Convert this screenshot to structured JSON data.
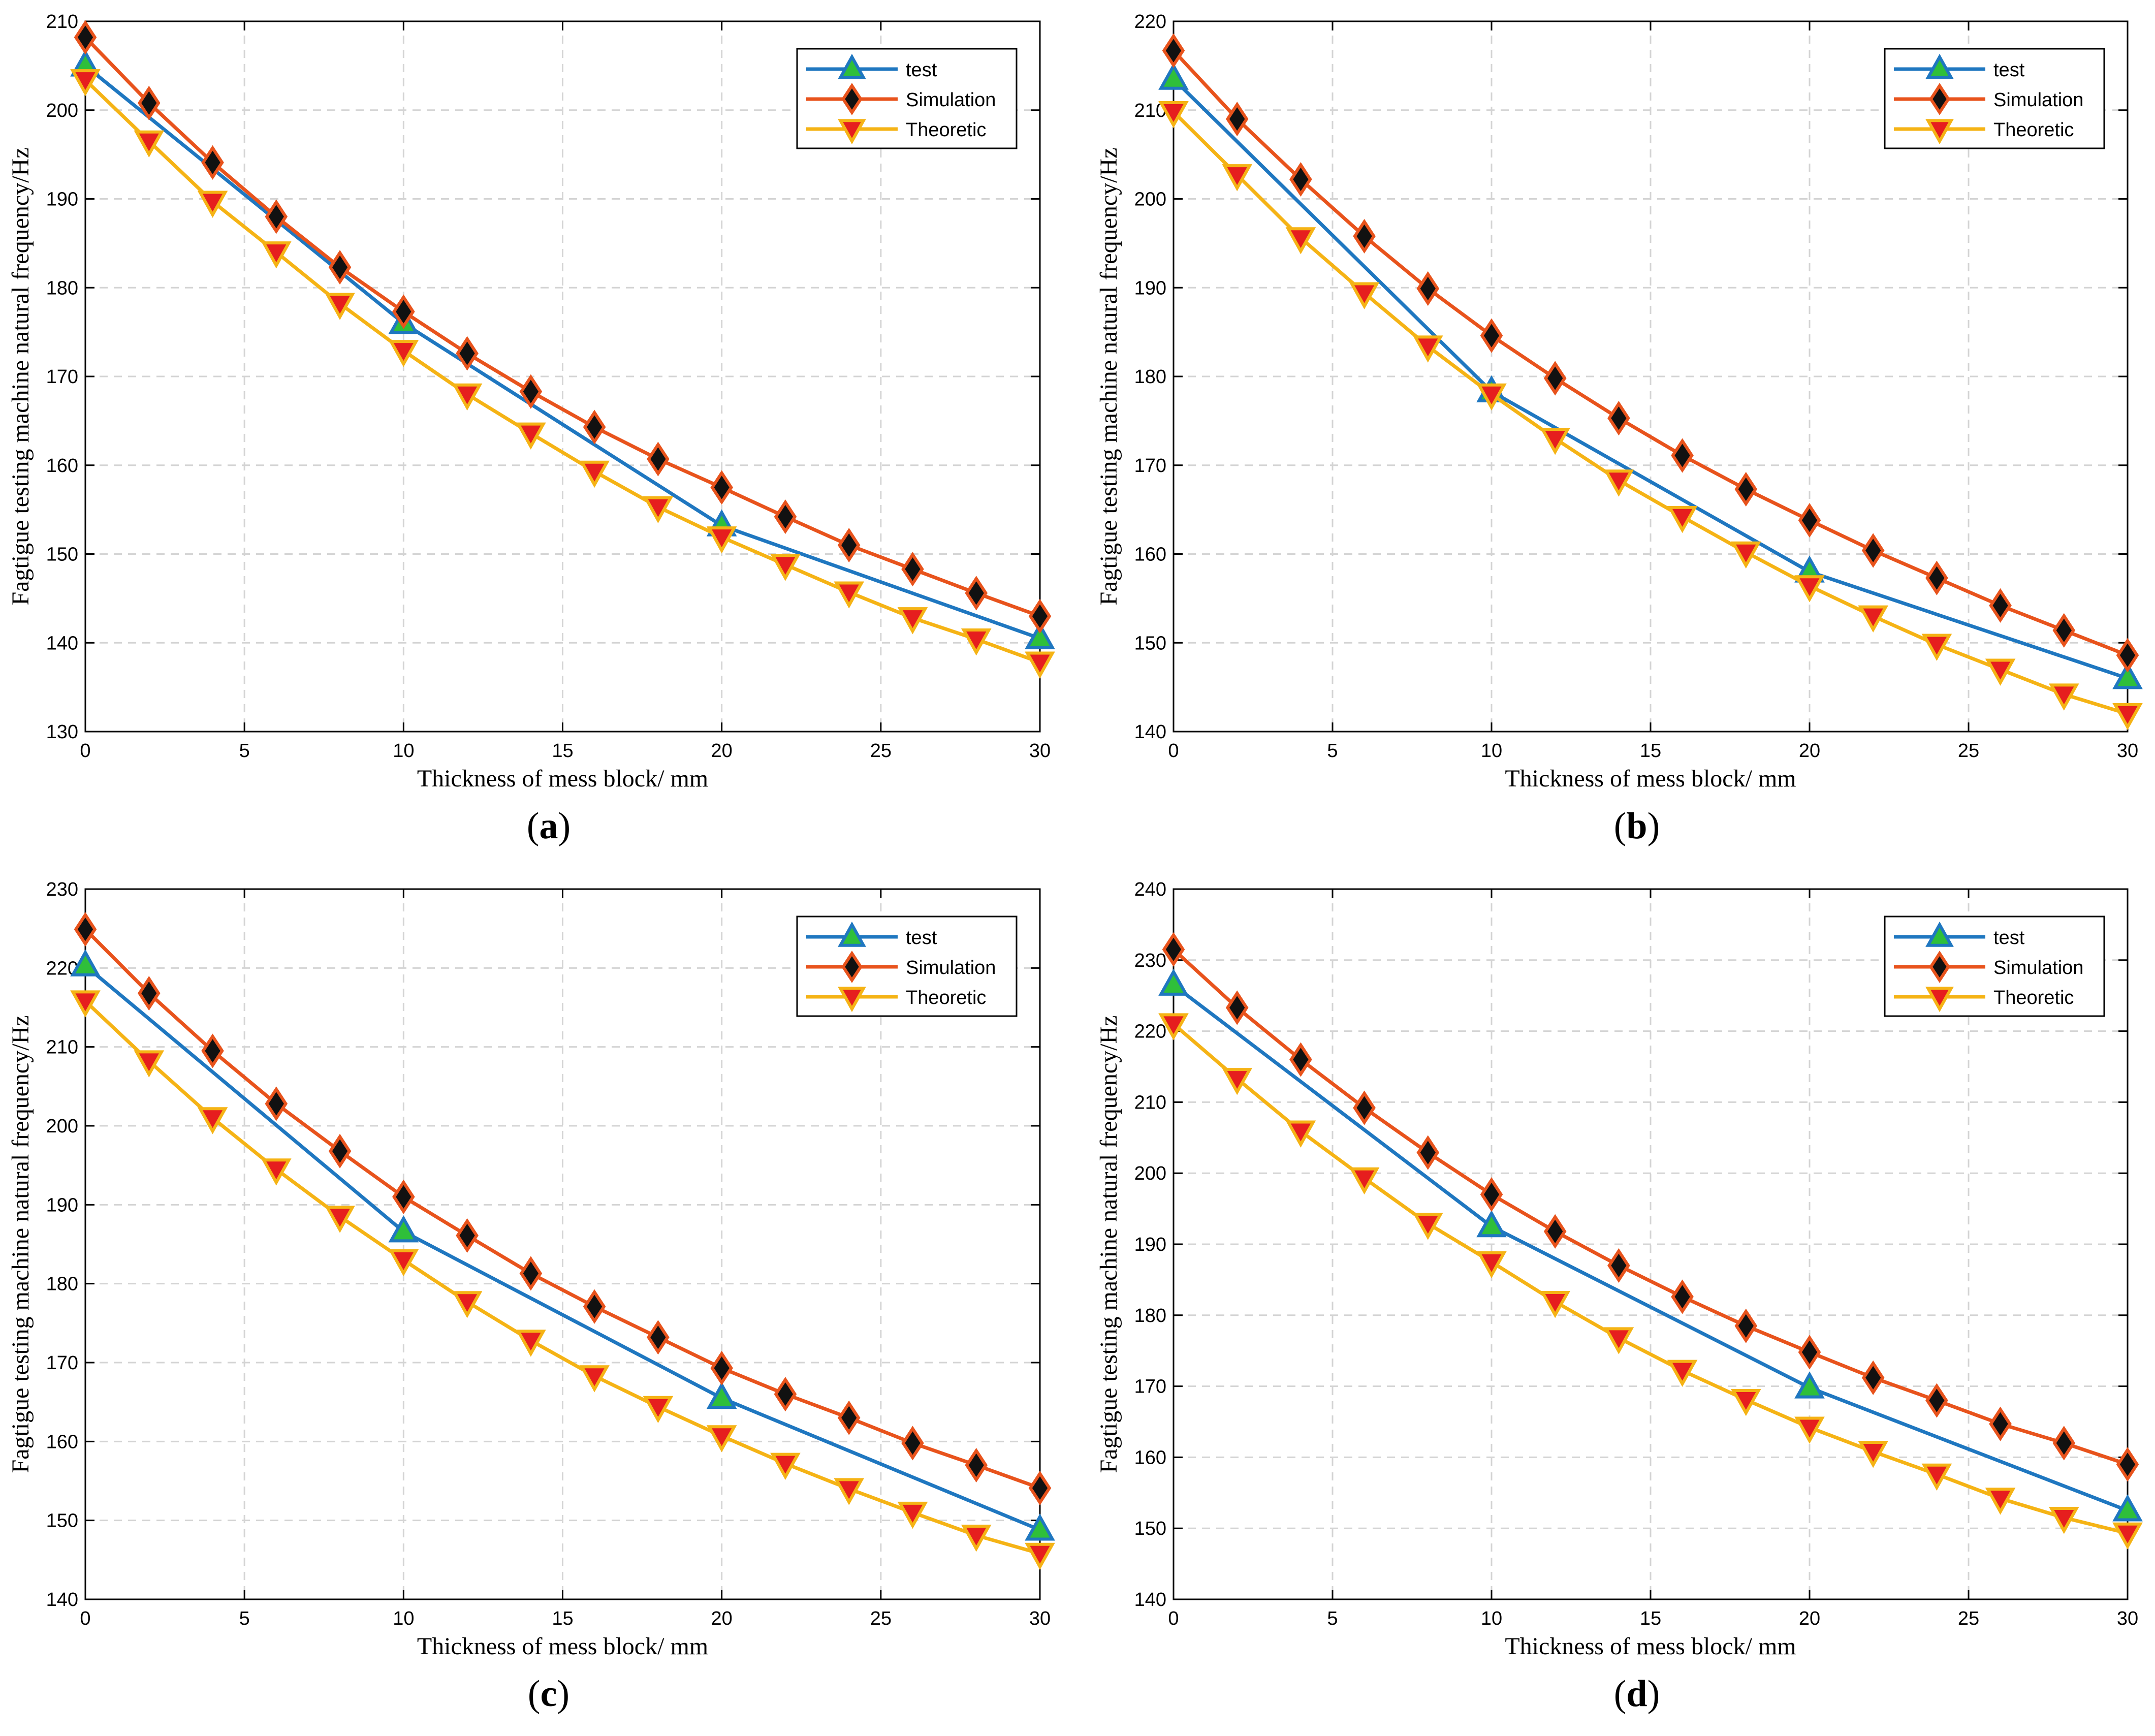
{
  "colors": {
    "test_line": "#1f77c0",
    "test_marker_fill": "#2fbf3a",
    "simulation_line": "#e8531c",
    "simulation_marker_fill": "#111111",
    "theoretic_line": "#f5b315",
    "theoretic_marker_fill": "#e61e1e",
    "grid": "#d4d4d4",
    "axis": "#000000"
  },
  "chart_data": [
    {
      "type": "line",
      "panel_label": "(a)",
      "panel_letter": "a",
      "xlabel": "Thickness of mess block/ mm",
      "ylabel": "Fagtigue testing machine natural frequency/Hz",
      "xlim": [
        0,
        30
      ],
      "ylim": [
        130,
        210
      ],
      "xticks": [
        0,
        5,
        10,
        15,
        20,
        25,
        30
      ],
      "yticks": [
        130,
        140,
        150,
        160,
        170,
        180,
        190,
        200,
        210
      ],
      "grid": true,
      "legend_position": "top-right",
      "series": [
        {
          "name": "test",
          "marker": "triangle-up",
          "x": [
            0,
            10,
            20,
            30
          ],
          "values": [
            205,
            176,
            153.2,
            140.5
          ]
        },
        {
          "name": "Simulation",
          "marker": "diamond",
          "x": [
            0,
            2,
            4,
            6,
            8,
            10,
            12,
            14,
            16,
            18,
            20,
            22,
            24,
            26,
            28,
            30
          ],
          "values": [
            208.2,
            200.8,
            194.1,
            188,
            182.3,
            177.3,
            172.6,
            168.3,
            164.3,
            160.7,
            157.5,
            154.2,
            151,
            148.3,
            145.6,
            143
          ]
        },
        {
          "name": "Theoretic",
          "marker": "triangle-down",
          "x": [
            0,
            2,
            4,
            6,
            8,
            10,
            12,
            14,
            16,
            18,
            20,
            22,
            24,
            26,
            28,
            30
          ],
          "values": [
            203.4,
            196.5,
            189.7,
            184,
            178.2,
            172.9,
            168,
            163.6,
            159.3,
            155.3,
            151.9,
            148.8,
            145.7,
            142.8,
            140.4,
            137.8
          ]
        }
      ]
    },
    {
      "type": "line",
      "panel_label": "(b)",
      "panel_letter": "b",
      "xlabel": "Thickness of mess block/ mm",
      "ylabel": "Fagtigue testing machine natural frequency/Hz",
      "xlim": [
        0,
        30
      ],
      "ylim": [
        140,
        220
      ],
      "xticks": [
        0,
        5,
        10,
        15,
        20,
        25,
        30
      ],
      "yticks": [
        140,
        150,
        160,
        170,
        180,
        190,
        200,
        210,
        220
      ],
      "grid": true,
      "legend_position": "top-right",
      "series": [
        {
          "name": "test",
          "marker": "triangle-up",
          "x": [
            0,
            10,
            20,
            30
          ],
          "values": [
            213.5,
            178.3,
            158,
            146
          ]
        },
        {
          "name": "Simulation",
          "marker": "diamond",
          "x": [
            0,
            2,
            4,
            6,
            8,
            10,
            12,
            14,
            16,
            18,
            20,
            22,
            24,
            26,
            28,
            30
          ],
          "values": [
            216.7,
            209,
            202.2,
            195.8,
            189.9,
            184.6,
            179.8,
            175.3,
            171.1,
            167.3,
            163.8,
            160.4,
            157.3,
            154.2,
            151.4,
            148.6
          ]
        },
        {
          "name": "Theoretic",
          "marker": "triangle-down",
          "x": [
            0,
            2,
            4,
            6,
            8,
            10,
            12,
            14,
            16,
            18,
            20,
            22,
            24,
            26,
            28,
            30
          ],
          "values": [
            209.8,
            202.7,
            195.6,
            189.4,
            183.4,
            178,
            173,
            168.3,
            164.2,
            160.2,
            156.4,
            153,
            149.8,
            147,
            144.2,
            142
          ]
        }
      ]
    },
    {
      "type": "line",
      "panel_label": "(c)",
      "panel_letter": "c",
      "xlabel": "Thickness of mess block/ mm",
      "ylabel": "Fagtigue testing machine natural frequency/Hz",
      "xlim": [
        0,
        30
      ],
      "ylim": [
        140,
        230
      ],
      "xticks": [
        0,
        5,
        10,
        15,
        20,
        25,
        30
      ],
      "yticks": [
        140,
        150,
        160,
        170,
        180,
        190,
        200,
        210,
        220,
        230
      ],
      "grid": true,
      "legend_position": "top-right",
      "series": [
        {
          "name": "test",
          "marker": "triangle-up",
          "x": [
            0,
            10,
            20,
            30
          ],
          "values": [
            220.3,
            186.6,
            165.5,
            148.8
          ]
        },
        {
          "name": "Simulation",
          "marker": "diamond",
          "x": [
            0,
            2,
            4,
            6,
            8,
            10,
            12,
            14,
            16,
            18,
            20,
            22,
            24,
            26,
            28,
            30
          ],
          "values": [
            224.9,
            216.8,
            209.5,
            202.8,
            196.8,
            191,
            186.1,
            181.3,
            177.1,
            173.2,
            169.3,
            166,
            163,
            159.8,
            157,
            154.1
          ]
        },
        {
          "name": "Theoretic",
          "marker": "triangle-down",
          "x": [
            0,
            2,
            4,
            6,
            8,
            10,
            12,
            14,
            16,
            18,
            20,
            22,
            24,
            26,
            28,
            30
          ],
          "values": [
            215.8,
            208.2,
            201,
            194.5,
            188.5,
            183,
            177.7,
            172.8,
            168.3,
            164.4,
            160.7,
            157.2,
            154,
            151,
            148.1,
            145.8
          ]
        }
      ]
    },
    {
      "type": "line",
      "panel_label": "(d)",
      "panel_letter": "d",
      "xlabel": "Thickness of mess block/ mm",
      "ylabel": "Fagtigue testing machine natural frequency/Hz",
      "xlim": [
        0,
        30
      ],
      "ylim": [
        140,
        240
      ],
      "xticks": [
        0,
        5,
        10,
        15,
        20,
        25,
        30
      ],
      "yticks": [
        140,
        150,
        160,
        170,
        180,
        190,
        200,
        210,
        220,
        230,
        240
      ],
      "grid": true,
      "legend_position": "top-right",
      "series": [
        {
          "name": "test",
          "marker": "triangle-up",
          "x": [
            0,
            10,
            20,
            30
          ],
          "values": [
            226.5,
            192.5,
            169.8,
            152.5
          ]
        },
        {
          "name": "Simulation",
          "marker": "diamond",
          "x": [
            0,
            2,
            4,
            6,
            8,
            10,
            12,
            14,
            16,
            18,
            20,
            22,
            24,
            26,
            28,
            30
          ],
          "values": [
            231.5,
            223.3,
            216,
            209.2,
            202.9,
            197,
            191.8,
            187,
            182.6,
            178.5,
            174.8,
            171.2,
            168,
            164.7,
            162,
            159
          ]
        },
        {
          "name": "Theoretic",
          "marker": "triangle-down",
          "x": [
            0,
            2,
            4,
            6,
            8,
            10,
            12,
            14,
            16,
            18,
            20,
            22,
            24,
            26,
            28,
            30
          ],
          "values": [
            221,
            213.3,
            205.9,
            199.3,
            192.9,
            187.5,
            181.9,
            176.8,
            172.2,
            168.1,
            164.2,
            160.8,
            157.6,
            154.2,
            151.5,
            149.3
          ]
        }
      ]
    }
  ]
}
